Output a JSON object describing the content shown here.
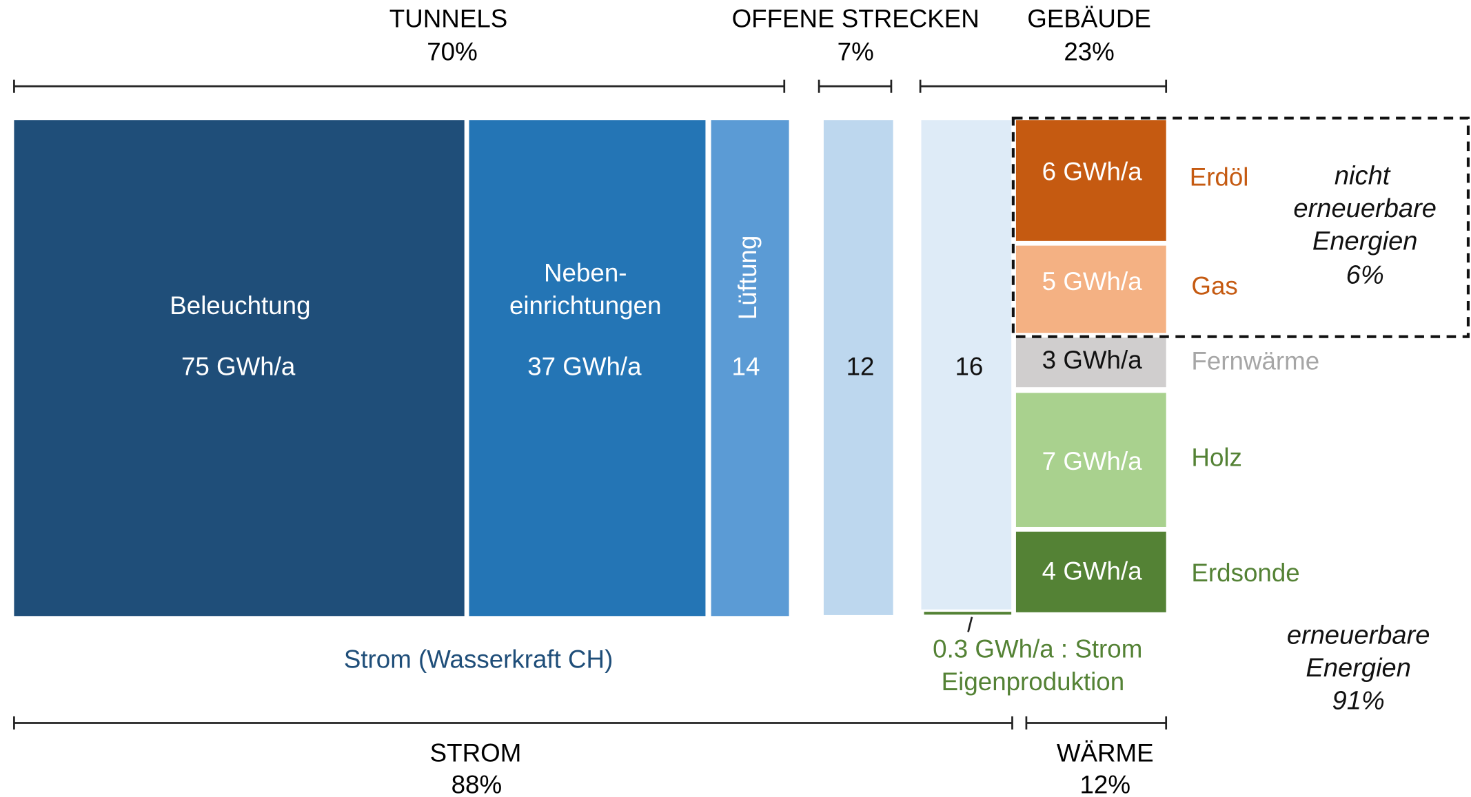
{
  "top_groups": [
    {
      "label": "TUNNELS",
      "share": "70%"
    },
    {
      "label": "OFFENE STRECKEN",
      "share": "7%"
    },
    {
      "label": "GEBÄUDE",
      "share": "23%"
    }
  ],
  "blocks": [
    {
      "label_lines": [
        "Beleuchtung"
      ],
      "value": "75 GWh/a"
    },
    {
      "label_lines": [
        "Neben-",
        "einrichtungen"
      ],
      "value": "37 GWh/a"
    },
    {
      "label_lines": [
        "Lüftung"
      ],
      "value": "14"
    },
    {
      "value": "12"
    },
    {
      "value": "16"
    }
  ],
  "heat": [
    {
      "value": "6 GWh/a",
      "label": "Erdöl"
    },
    {
      "value": "5 GWh/a",
      "label": "Gas"
    },
    {
      "value": "3 GWh/a",
      "label": "Fernwärme"
    },
    {
      "value": "7 GWh/a",
      "label": "Holz"
    },
    {
      "value": "4 GWh/a",
      "label": "Erdsonde"
    }
  ],
  "non_renewable": [
    "nicht",
    "erneuerbare",
    "Energien",
    "6%"
  ],
  "renewable": [
    "erneuerbare",
    "Energien",
    "91%"
  ],
  "strom_source": "Strom (Wasserkraft CH)",
  "self_production": [
    "0.3 GWh/a : Strom",
    "Eigenproduktion"
  ],
  "bottom_groups": [
    {
      "label": "STROM",
      "share": "88%"
    },
    {
      "label": "WÄRME",
      "share": "12%"
    }
  ]
}
